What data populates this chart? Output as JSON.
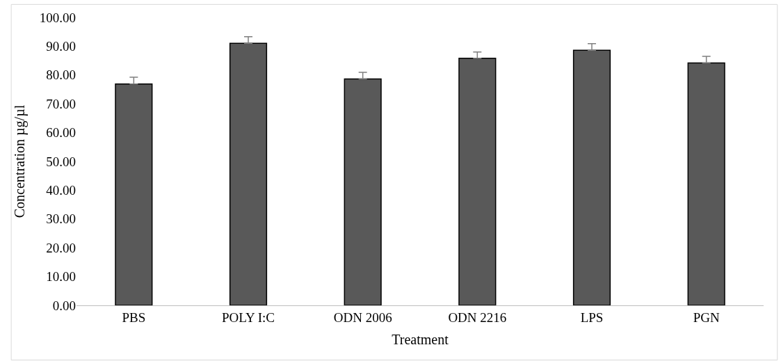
{
  "chart_data": {
    "type": "bar",
    "xlabel": "Treatment",
    "ylabel": "Concentration µg/µl",
    "categories": [
      "PBS",
      "POLY I:C",
      "ODN 2006",
      "ODN 2216",
      "LPS",
      "PGN"
    ],
    "values": [
      76.9,
      91.0,
      78.6,
      85.8,
      88.6,
      84.2
    ],
    "errors": [
      [
        76.9,
        79.2
      ],
      [
        91.0,
        93.3
      ],
      [
        78.6,
        80.9
      ],
      [
        85.8,
        88.0
      ],
      [
        88.6,
        90.9
      ],
      [
        84.2,
        86.5
      ]
    ],
    "color": "#595959",
    "ylim": [
      0,
      100
    ],
    "yticks": [
      {
        "value": 0,
        "label": "0.00"
      },
      {
        "value": 10,
        "label": "10.00"
      },
      {
        "value": 20,
        "label": "20.00"
      },
      {
        "value": 30,
        "label": "30.00"
      },
      {
        "value": 40,
        "label": "40.00"
      },
      {
        "value": 50,
        "label": "50.00"
      },
      {
        "value": 60,
        "label": "60.00"
      },
      {
        "value": 70,
        "label": "70.00"
      },
      {
        "value": 80,
        "label": "80.00"
      },
      {
        "value": 90,
        "label": "90.00"
      },
      {
        "value": 100,
        "label": "100.00"
      }
    ],
    "legend": false
  }
}
